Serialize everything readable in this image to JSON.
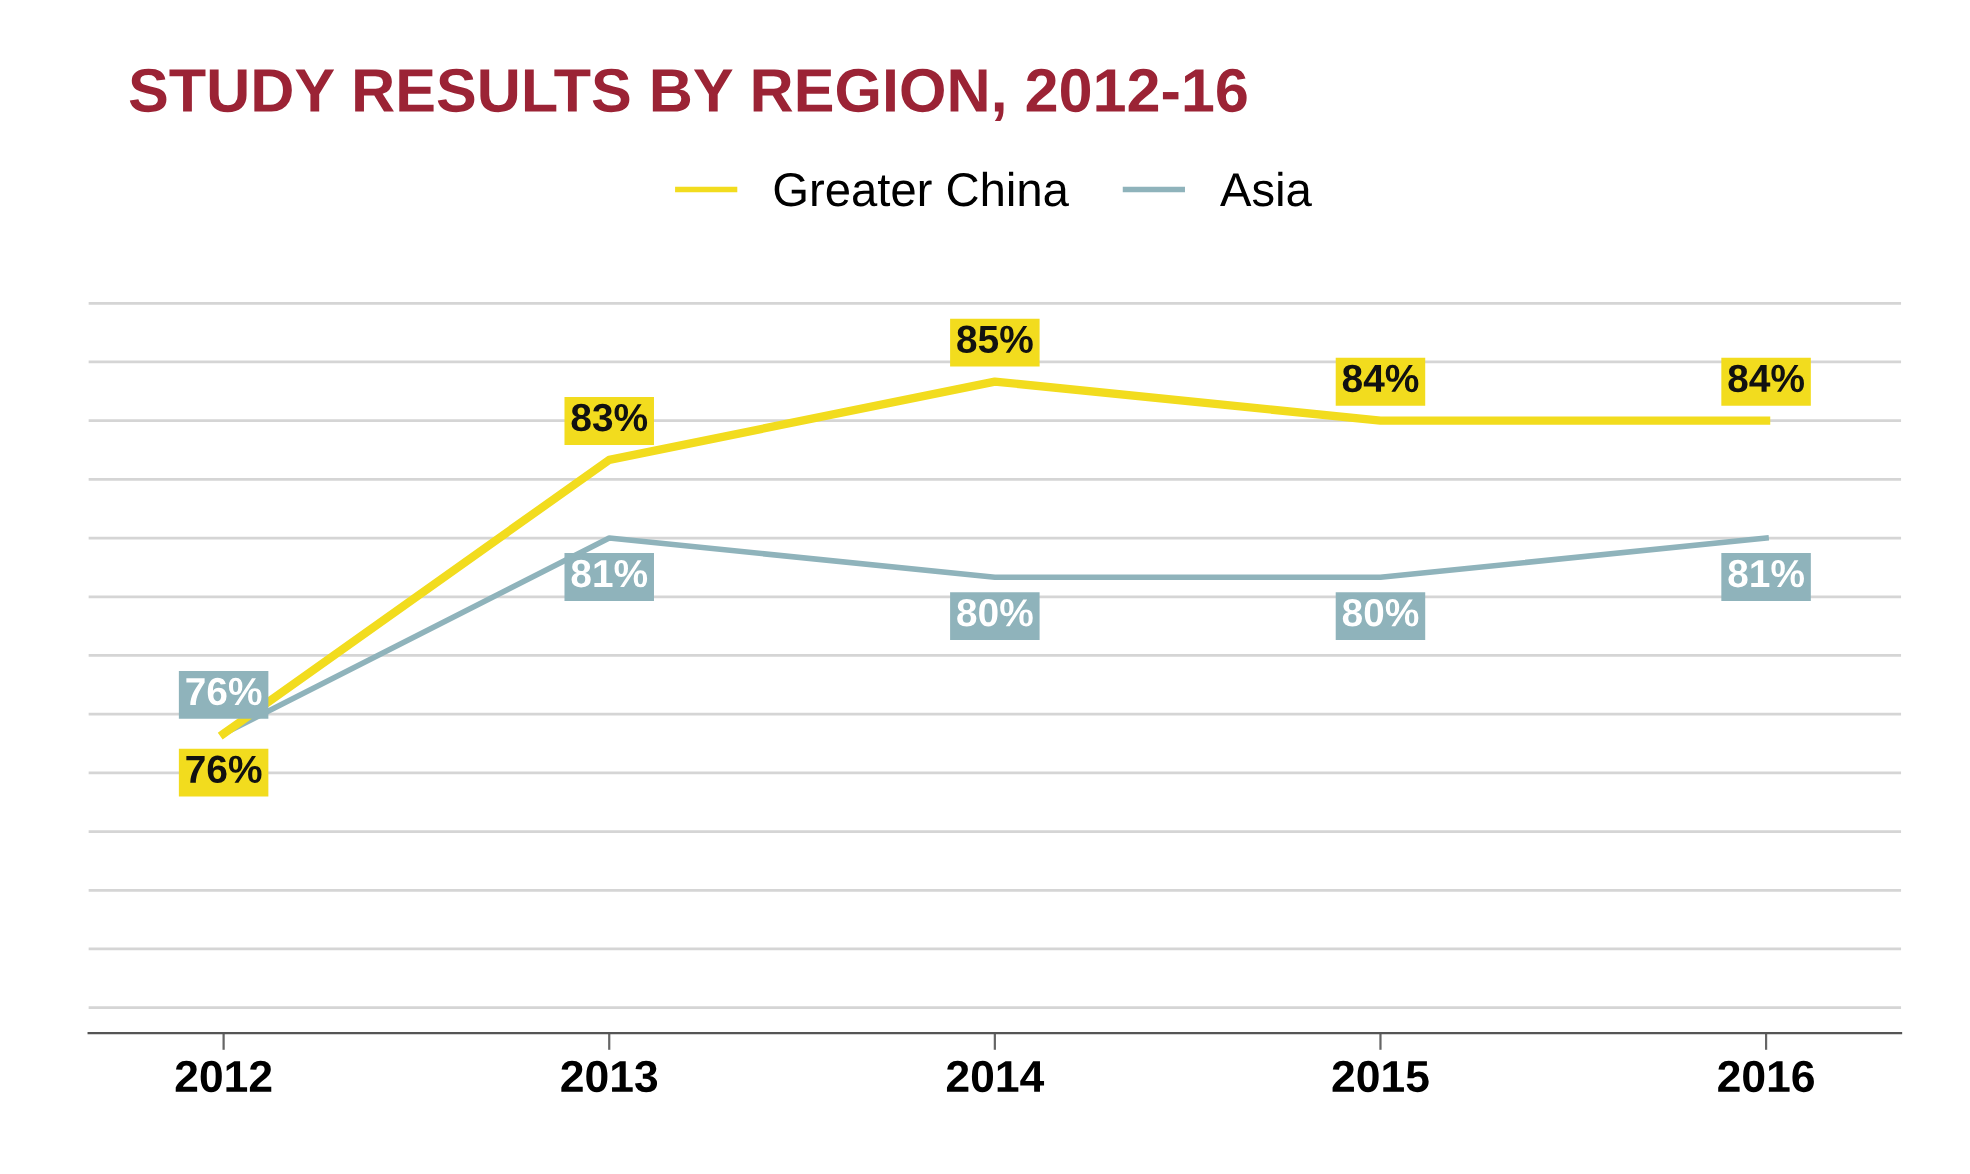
{
  "chart_data": {
    "type": "line",
    "title": "STUDY RESULTS BY REGION, 2012-16",
    "categories": [
      "2012",
      "2013",
      "2014",
      "2015",
      "2016"
    ],
    "series": [
      {
        "name": "Greater China",
        "color": "#f2dc1e",
        "values": [
          76,
          83,
          85,
          84,
          84
        ],
        "value_labels": [
          "76%",
          "83%",
          "85%",
          "84%",
          "84%"
        ]
      },
      {
        "name": "Asia",
        "color": "#8fb3bb",
        "values": [
          76,
          81,
          80,
          80,
          81
        ],
        "value_labels": [
          "76%",
          "81%",
          "80%",
          "80%",
          "81%"
        ]
      }
    ],
    "grid": "y",
    "legend": "top",
    "tick_labels": "x"
  }
}
